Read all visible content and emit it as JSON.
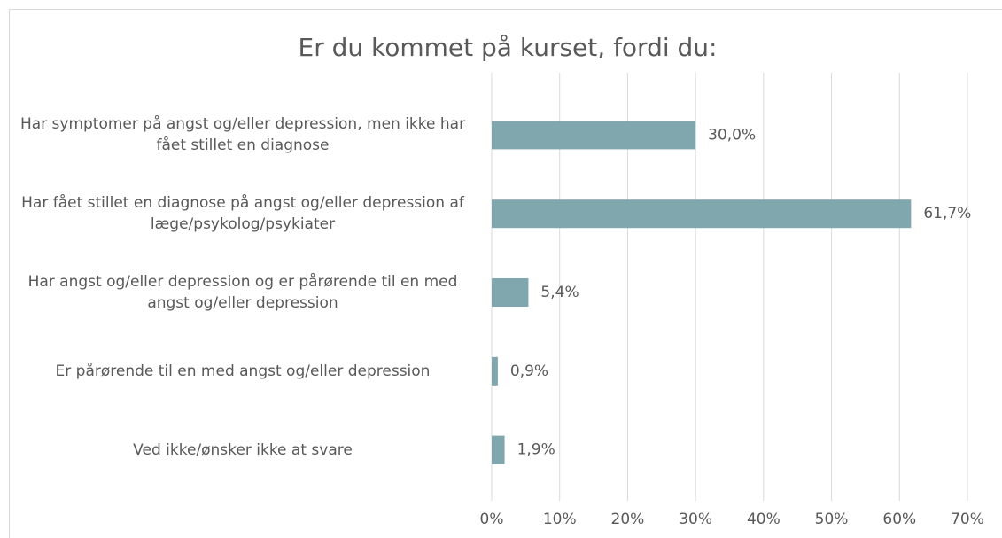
{
  "chart_data": {
    "type": "bar",
    "orientation": "horizontal",
    "title": "Er du kommet på kurset, fordi du:",
    "categories": [
      "Har symptomer på angst og/eller depression, men ikke har fået stillet en diagnose",
      "Har fået stillet en diagnose på angst og/eller depression af læge/psykolog/psykiater",
      "Har angst og/eller depression og er pårørende til en med angst og/eller depression",
      "Er pårørende til en med angst og/eller depression",
      "Ved ikke/ønsker ikke at svare"
    ],
    "values": [
      30.0,
      61.7,
      5.4,
      0.9,
      1.9
    ],
    "value_labels": [
      "30,0%",
      "61,7%",
      "5,4%",
      "0,9%",
      "1,9%"
    ],
    "color": "#7fa7ad",
    "xlim": [
      0,
      70
    ],
    "xticks": [
      {
        "value": 0,
        "label": "0%"
      },
      {
        "value": 10,
        "label": "10%"
      },
      {
        "value": 20,
        "label": "20%"
      },
      {
        "value": 30,
        "label": "30%"
      },
      {
        "value": 40,
        "label": "40%"
      },
      {
        "value": 50,
        "label": "50%"
      },
      {
        "value": 60,
        "label": "60%"
      },
      {
        "value": 70,
        "label": "70%"
      }
    ],
    "grid": true
  }
}
